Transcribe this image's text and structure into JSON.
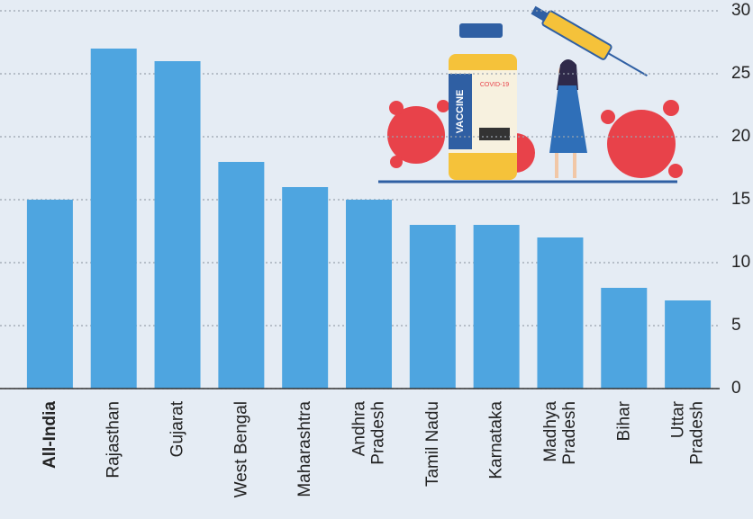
{
  "chart_data": {
    "type": "bar",
    "categories": [
      "All-India",
      "Rajasthan",
      "Gujarat",
      "West Bengal",
      "Maharashtra",
      "Andhra\nPradesh",
      "Tamil Nadu",
      "Karnataka",
      "Madhya\nPradesh",
      "Bihar",
      "Uttar\nPradesh"
    ],
    "values": [
      15,
      27,
      26,
      18,
      16,
      15,
      13,
      13,
      12,
      8,
      7
    ],
    "color": "#4ea5e0",
    "ylim": [
      0,
      30
    ],
    "yticks": [
      0,
      5,
      10,
      15,
      20,
      25,
      30
    ],
    "grid": true,
    "y_axis_side": "right"
  },
  "illustration": {
    "bottle_label": "VACCINE",
    "bottle_tag": "COVID-19"
  }
}
